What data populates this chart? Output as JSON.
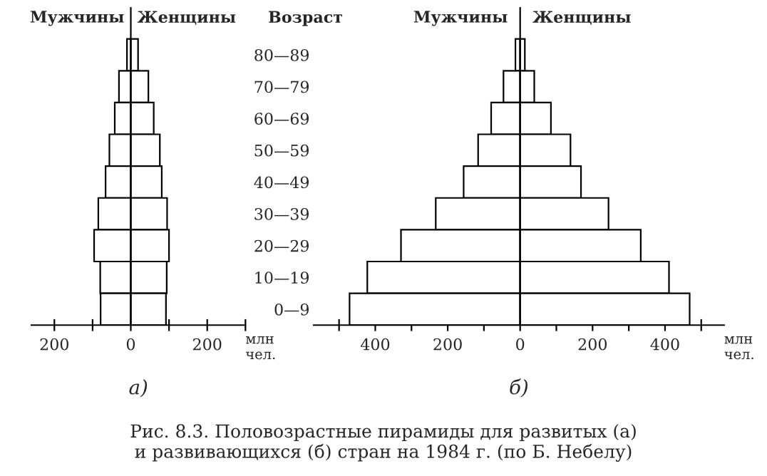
{
  "chart_data": [
    {
      "type": "bar",
      "orientation": "horizontal",
      "stacked": true,
      "categories": [
        null,
        null,
        null,
        null,
        null,
        null,
        null,
        null,
        null
      ],
      "tick_labels": "x",
      "series": [
        {
          "name": "Мужчины",
          "color": "#ffffff",
          "values": [
            -10,
            -31,
            -42,
            -56,
            -66,
            -85,
            -96,
            -80,
            -79
          ]
        },
        {
          "name": "Женщины",
          "color": "#ffffff",
          "values": [
            19,
            46,
            60,
            76,
            81,
            95,
            100,
            94,
            92
          ]
        }
      ],
      "xlim": [
        -260,
        300
      ],
      "xticks": [
        {
          "value": -200,
          "label": "200"
        },
        {
          "value": -100,
          "label": null
        },
        0,
        {
          "value": 100,
          "label": null
        },
        200,
        {
          "value": 300,
          "label": null
        }
      ],
      "xlabel": "млн\nчел.",
      "ref_lines": [
        {
          "axis": "x",
          "value": 0
        }
      ],
      "annotations": [
        "а)"
      ]
    },
    {
      "type": "bar",
      "orientation": "horizontal",
      "stacked": true,
      "categories": [
        "80—89",
        "70—79",
        "60—69",
        "50—59",
        "40—49",
        "30—39",
        "20—29",
        "10—19",
        "0—9"
      ],
      "ylabel": "Возраст",
      "series": [
        {
          "name": "Мужчины",
          "color": "#ffffff",
          "values": [
            -13,
            -46,
            -80,
            -116,
            -156,
            -233,
            -329,
            -422,
            -471
          ]
        },
        {
          "name": "Женщины",
          "color": "#ffffff",
          "values": [
            13,
            39,
            85,
            139,
            168,
            244,
            333,
            411,
            468
          ]
        }
      ],
      "xlim": [
        -570,
        563
      ],
      "xticks": [
        {
          "value": -500,
          "label": null
        },
        {
          "value": -400,
          "label": "400"
        },
        {
          "value": -300,
          "label": null
        },
        {
          "value": -200,
          "label": "200"
        },
        {
          "value": -100,
          "label": null
        },
        0,
        {
          "value": 100,
          "label": null
        },
        200,
        {
          "value": 300,
          "label": null
        },
        400,
        {
          "value": 500,
          "label": null
        }
      ],
      "xlabel": "млн\nчел.",
      "ref_lines": [
        {
          "axis": "x",
          "value": 0
        }
      ],
      "annotations": [
        "б)",
        "Рис. 8.3. Половозрастные пирамиды для развитых (а)\nи развивающихся (б) стран на 1984 г. (по Б. Небелу)"
      ]
    }
  ]
}
